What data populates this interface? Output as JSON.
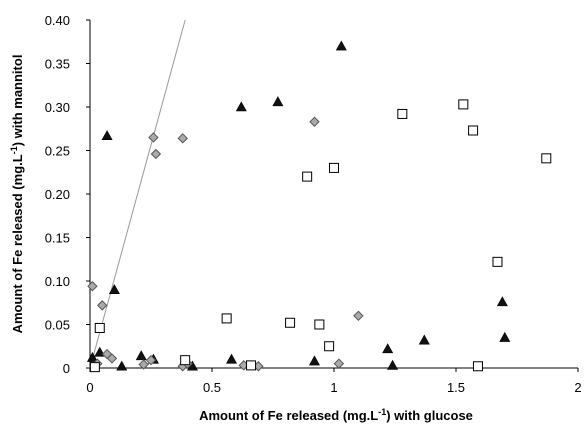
{
  "chart_data": {
    "type": "scatter",
    "title": "",
    "xlabel": "Amount of Fe released (mg.L",
    "xlabel_sup": "-1",
    "xlabel_end": ") with glucose",
    "ylabel": "Amount of Fe released (mg.L",
    "ylabel_sup": "-1",
    "ylabel_end": ") with mannitol",
    "xlim": [
      0,
      2
    ],
    "ylim": [
      0,
      0.4
    ],
    "x_ticks": [
      "0",
      "0.5",
      "1",
      "1.5",
      "2"
    ],
    "y_ticks": [
      "0",
      "0.05",
      "0.10",
      "0.15",
      "0.20",
      "0.25",
      "0.30",
      "0.35",
      "0.40"
    ],
    "grid": false,
    "legend": "none",
    "reference_line": {
      "x": [
        0,
        0.39
      ],
      "y": [
        0,
        0.4
      ]
    },
    "series": [
      {
        "marker": "triangle",
        "color": "#111111",
        "points": [
          [
            0.01,
            0.012
          ],
          [
            0.04,
            0.018
          ],
          [
            0.07,
            0.267
          ],
          [
            0.1,
            0.09
          ],
          [
            0.13,
            0.002
          ],
          [
            0.21,
            0.014
          ],
          [
            0.26,
            0.01
          ],
          [
            0.42,
            0.002
          ],
          [
            0.58,
            0.01
          ],
          [
            0.62,
            0.3
          ],
          [
            0.77,
            0.306
          ],
          [
            0.92,
            0.008
          ],
          [
            1.03,
            0.37
          ],
          [
            1.22,
            0.022
          ],
          [
            1.24,
            0.003
          ],
          [
            1.37,
            0.032
          ],
          [
            1.69,
            0.076
          ],
          [
            1.7,
            0.035
          ]
        ]
      },
      {
        "marker": "diamond",
        "color": "#aaaaaa",
        "points": [
          [
            0.01,
            0.094
          ],
          [
            0.03,
            0.005
          ],
          [
            0.05,
            0.072
          ],
          [
            0.07,
            0.016
          ],
          [
            0.09,
            0.011
          ],
          [
            0.22,
            0.004
          ],
          [
            0.25,
            0.009
          ],
          [
            0.26,
            0.265
          ],
          [
            0.27,
            0.246
          ],
          [
            0.38,
            0.264
          ],
          [
            0.38,
            0.002
          ],
          [
            0.4,
            0.005
          ],
          [
            0.63,
            0.003
          ],
          [
            0.69,
            0.002
          ],
          [
            0.92,
            0.283
          ],
          [
            1.02,
            0.005
          ],
          [
            1.1,
            0.06
          ]
        ]
      },
      {
        "marker": "square",
        "color": "#ffffff",
        "points": [
          [
            0.02,
            0.001
          ],
          [
            0.04,
            0.046
          ],
          [
            0.39,
            0.009
          ],
          [
            0.56,
            0.057
          ],
          [
            0.66,
            0.003
          ],
          [
            0.82,
            0.052
          ],
          [
            0.89,
            0.22
          ],
          [
            0.94,
            0.05
          ],
          [
            0.98,
            0.025
          ],
          [
            1.0,
            0.23
          ],
          [
            1.28,
            0.292
          ],
          [
            1.53,
            0.303
          ],
          [
            1.57,
            0.273
          ],
          [
            1.59,
            0.002
          ],
          [
            1.67,
            0.122
          ],
          [
            1.87,
            0.241
          ]
        ]
      }
    ]
  }
}
